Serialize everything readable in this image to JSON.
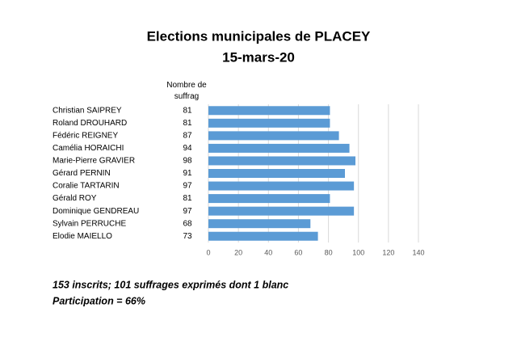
{
  "chart_data": {
    "type": "bar",
    "orientation": "horizontal",
    "title": "Elections municipales de PLACEY",
    "subtitle": "15-mars-20",
    "value_header": "Nombre de suffrag",
    "categories": [
      "Christian SAIPREY",
      "Roland DROUHARD",
      "Fédéric REIGNEY",
      "Camélia HORAICHI",
      "Marie-Pierre GRAVIER",
      "Gérard PERNIN",
      "Coralie TARTARIN",
      "Gérald ROY",
      "Dominique GENDREAU",
      "Sylvain PERRUCHE",
      "Elodie MAIELLO"
    ],
    "values": [
      81,
      81,
      87,
      94,
      98,
      91,
      97,
      81,
      97,
      68,
      73
    ],
    "color": "#5b9bd5",
    "xlim": [
      0,
      140
    ],
    "xticks": [
      0,
      20,
      40,
      60,
      80,
      100,
      120,
      140
    ],
    "grid": true,
    "annotations": [
      "153 inscrits; 101 suffrages exprimés dont 1 blanc",
      "Participation = 66%"
    ]
  }
}
